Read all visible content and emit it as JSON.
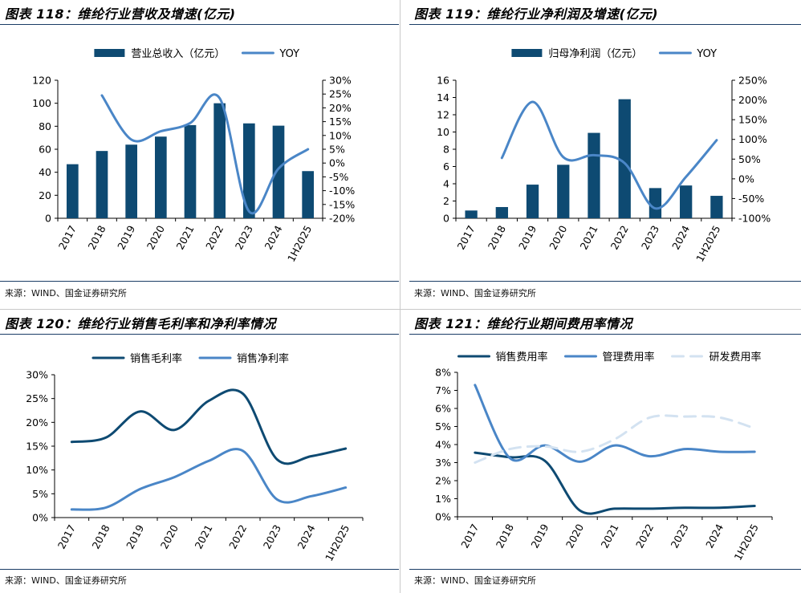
{
  "panels": [
    {
      "title": "图表 118：维纶行业营收及增速(亿元)",
      "source": "来源：WIND、国金证券研究所",
      "chart_data": {
        "type": "bar",
        "categories": [
          "2017",
          "2018",
          "2019",
          "2020",
          "2021",
          "2022",
          "2023",
          "2024",
          "1H2025"
        ],
        "series": [
          {
            "name": "营业总收入（亿元）",
            "type": "bar",
            "axis": "left",
            "color": "#0e4a72",
            "values": [
              47,
              58.5,
              64,
              71,
              81,
              100,
              82.5,
              80.5,
              41
            ]
          },
          {
            "name": "YOY",
            "type": "line",
            "axis": "right",
            "color": "#4a86c7",
            "values": [
              null,
              24.5,
              8.5,
              11.5,
              14.5,
              23.5,
              -17.5,
              -2,
              5
            ]
          }
        ],
        "ylim": [
          0,
          120
        ],
        "yticks": [
          0,
          20,
          40,
          60,
          80,
          100,
          120
        ],
        "y2lim": [
          -20,
          30
        ],
        "y2ticks": [
          -20,
          -15,
          -10,
          -5,
          0,
          5,
          10,
          15,
          20,
          25,
          30
        ],
        "y2format": "percent",
        "legend": "top-center"
      }
    },
    {
      "title": "图表 119：维纶行业净利润及增速(亿元)",
      "source": "来源：WIND、国金证券研究所",
      "chart_data": {
        "type": "bar",
        "categories": [
          "2017",
          "2018",
          "2019",
          "2020",
          "2021",
          "2022",
          "2023",
          "2024",
          "1H2025"
        ],
        "series": [
          {
            "name": "归母净利润（亿元）",
            "type": "bar",
            "axis": "left",
            "color": "#0e4a72",
            "values": [
              0.9,
              1.3,
              3.9,
              6.2,
              9.9,
              13.8,
              3.5,
              3.8,
              2.6
            ]
          },
          {
            "name": "YOY",
            "type": "line",
            "axis": "right",
            "color": "#4a86c7",
            "values": [
              null,
              53,
              195,
              55,
              60,
              40,
              -75,
              5,
              98
            ]
          }
        ],
        "ylim": [
          0,
          16
        ],
        "yticks": [
          0,
          2,
          4,
          6,
          8,
          10,
          12,
          14,
          16
        ],
        "y2lim": [
          -100,
          250
        ],
        "y2ticks": [
          -100,
          -50,
          0,
          50,
          100,
          150,
          200,
          250
        ],
        "y2format": "percent",
        "legend": "top-center"
      }
    },
    {
      "title": "图表 120：维纶行业销售毛利率和净利率情况",
      "source": "来源：WIND、国金证券研究所",
      "chart_data": {
        "type": "line",
        "categories": [
          "2017",
          "2018",
          "2019",
          "2020",
          "2021",
          "2022",
          "2023",
          "2024",
          "1H2025"
        ],
        "series": [
          {
            "name": "销售毛利率",
            "color": "#0e4a72",
            "dash": false,
            "values": [
              15.9,
              16.8,
              22.3,
              18.4,
              24.5,
              26.0,
              12.2,
              12.9,
              14.5
            ]
          },
          {
            "name": "销售净利率",
            "color": "#4a86c7",
            "dash": false,
            "values": [
              1.7,
              2.1,
              6.0,
              8.5,
              11.9,
              14.0,
              3.8,
              4.5,
              6.3
            ]
          }
        ],
        "ylim": [
          0,
          30
        ],
        "yticks": [
          0,
          5,
          10,
          15,
          20,
          25,
          30
        ],
        "yformat": "percent",
        "legend": "top-center"
      }
    },
    {
      "title": "图表 121：维纶行业期间费用率情况",
      "source": "来源：WIND、国金证券研究所",
      "chart_data": {
        "type": "line",
        "categories": [
          "2017",
          "2018",
          "2019",
          "2020",
          "2021",
          "2022",
          "2023",
          "2024",
          "1H2025"
        ],
        "series": [
          {
            "name": "销售费用率",
            "color": "#0e4a72",
            "dash": false,
            "values": [
              3.55,
              3.3,
              3.1,
              0.35,
              0.45,
              0.45,
              0.5,
              0.5,
              0.6
            ]
          },
          {
            "name": "管理费用率",
            "color": "#4a86c7",
            "dash": false,
            "values": [
              7.3,
              3.25,
              3.95,
              3.05,
              3.95,
              3.35,
              3.75,
              3.6,
              3.6
            ]
          },
          {
            "name": "研发费用率",
            "color": "#d3e2f1",
            "dash": true,
            "values": [
              3.0,
              3.75,
              3.9,
              3.6,
              4.3,
              5.5,
              5.55,
              5.5,
              4.9
            ]
          }
        ],
        "ylim": [
          0,
          8
        ],
        "yticks": [
          0,
          1,
          2,
          3,
          4,
          5,
          6,
          7,
          8
        ],
        "yformat": "percent",
        "legend": "top-center"
      }
    }
  ]
}
